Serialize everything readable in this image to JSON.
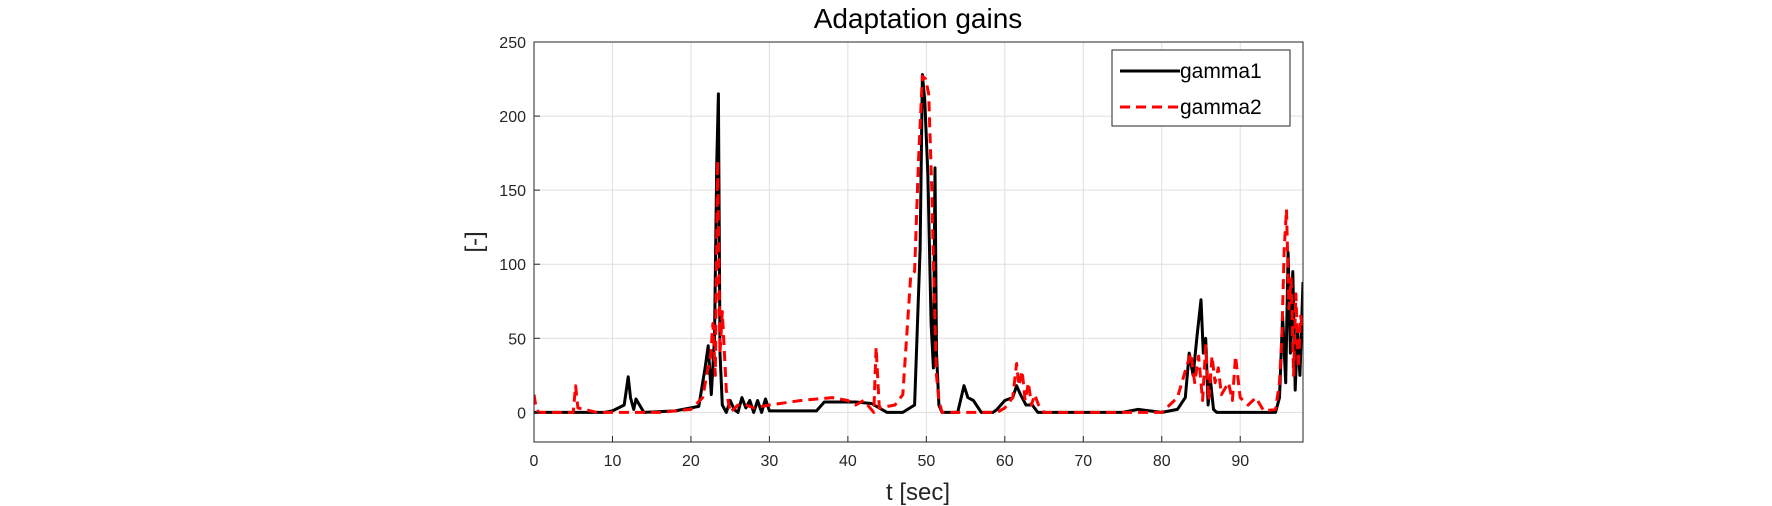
{
  "chart_data": {
    "type": "line",
    "title": "Adaptation gains",
    "xlabel": "t [sec]",
    "ylabel": "[-]",
    "xlim": [
      0,
      98
    ],
    "ylim": [
      -20,
      250
    ],
    "xticks": [
      0,
      10,
      20,
      30,
      40,
      50,
      60,
      70,
      80,
      90
    ],
    "yticks": [
      0,
      50,
      100,
      150,
      200,
      250
    ],
    "grid": true,
    "legend_position": "top-right",
    "series": [
      {
        "name": "gamma1",
        "color": "#000000",
        "style": "solid",
        "x": [
          0,
          5,
          9,
          10,
          11.5,
          12,
          12.3,
          12.7,
          13,
          14,
          18,
          21,
          21.8,
          22.2,
          22.6,
          23,
          23.3,
          23.5,
          23.7,
          24,
          24.5,
          25,
          25.5,
          26,
          26.5,
          27,
          27.5,
          28,
          28.5,
          29,
          29.5,
          30,
          33,
          36,
          37,
          39,
          41,
          43,
          45,
          47,
          48.5,
          49.2,
          49.5,
          49.8,
          50.2,
          50.6,
          50.9,
          51.1,
          51.3,
          51.6,
          52,
          54,
          54.8,
          55.3,
          56,
          57,
          58.5,
          59,
          60,
          61,
          61.5,
          62,
          62.7,
          63.5,
          64.2,
          65,
          66,
          70,
          75,
          77,
          80,
          82,
          83,
          83.5,
          84,
          84.5,
          85,
          85.3,
          85.6,
          85.9,
          86.2,
          86.6,
          87,
          88,
          90,
          93,
          94.5,
          95,
          95.4,
          95.8,
          96.1,
          96.4,
          96.7,
          97,
          97.3,
          97.6,
          98
        ],
        "y": [
          0,
          0,
          0,
          1,
          5,
          24,
          10,
          2,
          9,
          0,
          1,
          4,
          30,
          45,
          12,
          50,
          170,
          215,
          40,
          5,
          0,
          8,
          2,
          0,
          10,
          3,
          8,
          0,
          8,
          0,
          9,
          1,
          1,
          1,
          7,
          7,
          7,
          6,
          0,
          0,
          5,
          110,
          228,
          210,
          160,
          60,
          30,
          165,
          40,
          5,
          0,
          0,
          18,
          10,
          8,
          0,
          0,
          2,
          8,
          10,
          18,
          12,
          5,
          5,
          0,
          0,
          0,
          0,
          0,
          2,
          0,
          2,
          10,
          40,
          25,
          52,
          76,
          40,
          50,
          5,
          22,
          2,
          0,
          0,
          0,
          0,
          0,
          10,
          65,
          20,
          108,
          40,
          95,
          15,
          55,
          25,
          88
        ]
      },
      {
        "name": "gamma2",
        "color": "#ff0000",
        "style": "dashed",
        "x": [
          0,
          0.3,
          0.6,
          2,
          5,
          5.3,
          5.6,
          8,
          12,
          16,
          20,
          21.5,
          22,
          22.5,
          22.8,
          23.1,
          23.4,
          23.7,
          24,
          24.5,
          25,
          26,
          27,
          28,
          30,
          34,
          38,
          40,
          41,
          42,
          43.3,
          43.6,
          44,
          46,
          47,
          48,
          48.5,
          49,
          49.5,
          49.9,
          50.3,
          50.7,
          51,
          51.3,
          51.6,
          52,
          53,
          55,
          57,
          59,
          60,
          61,
          61.5,
          61.8,
          62.2,
          62.6,
          63,
          63.4,
          63.8,
          64.3,
          65,
          70,
          75,
          80,
          82,
          83,
          83.7,
          84.2,
          84.7,
          85.2,
          85.6,
          86,
          86.4,
          86.8,
          87.2,
          87.6,
          88.5,
          89,
          89.4,
          90,
          91,
          92,
          93,
          94.5,
          95,
          95.3,
          95.6,
          95.9,
          96.2,
          96.5,
          96.8,
          97.1,
          97.4,
          97.7,
          98
        ],
        "y": [
          12,
          2,
          0,
          0,
          0,
          18,
          3,
          0,
          0,
          0,
          2,
          10,
          25,
          38,
          60,
          25,
          170,
          40,
          68,
          15,
          0,
          5,
          5,
          3,
          5,
          8,
          10,
          8,
          5,
          8,
          0,
          44,
          3,
          5,
          12,
          92,
          95,
          170,
          227,
          225,
          215,
          150,
          80,
          25,
          8,
          0,
          0,
          0,
          0,
          0,
          3,
          10,
          33,
          18,
          28,
          8,
          20,
          5,
          12,
          5,
          0,
          0,
          0,
          0,
          10,
          28,
          40,
          20,
          38,
          8,
          45,
          8,
          38,
          20,
          30,
          12,
          20,
          8,
          38,
          10,
          5,
          10,
          1,
          2,
          20,
          50,
          110,
          137,
          70,
          90,
          25,
          80,
          30,
          65,
          55
        ]
      }
    ]
  }
}
